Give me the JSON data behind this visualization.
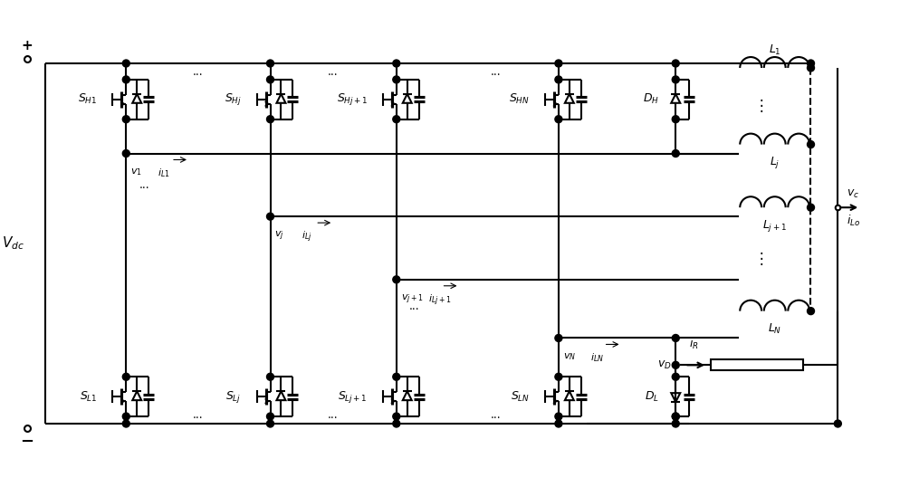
{
  "fig_width": 9.95,
  "fig_height": 5.38,
  "dpi": 100,
  "bg_color": "#ffffff",
  "line_color": "#000000",
  "lw": 1.5,
  "lw_thin": 1.0,
  "Vdc_label": "V_{dc}",
  "title": ""
}
